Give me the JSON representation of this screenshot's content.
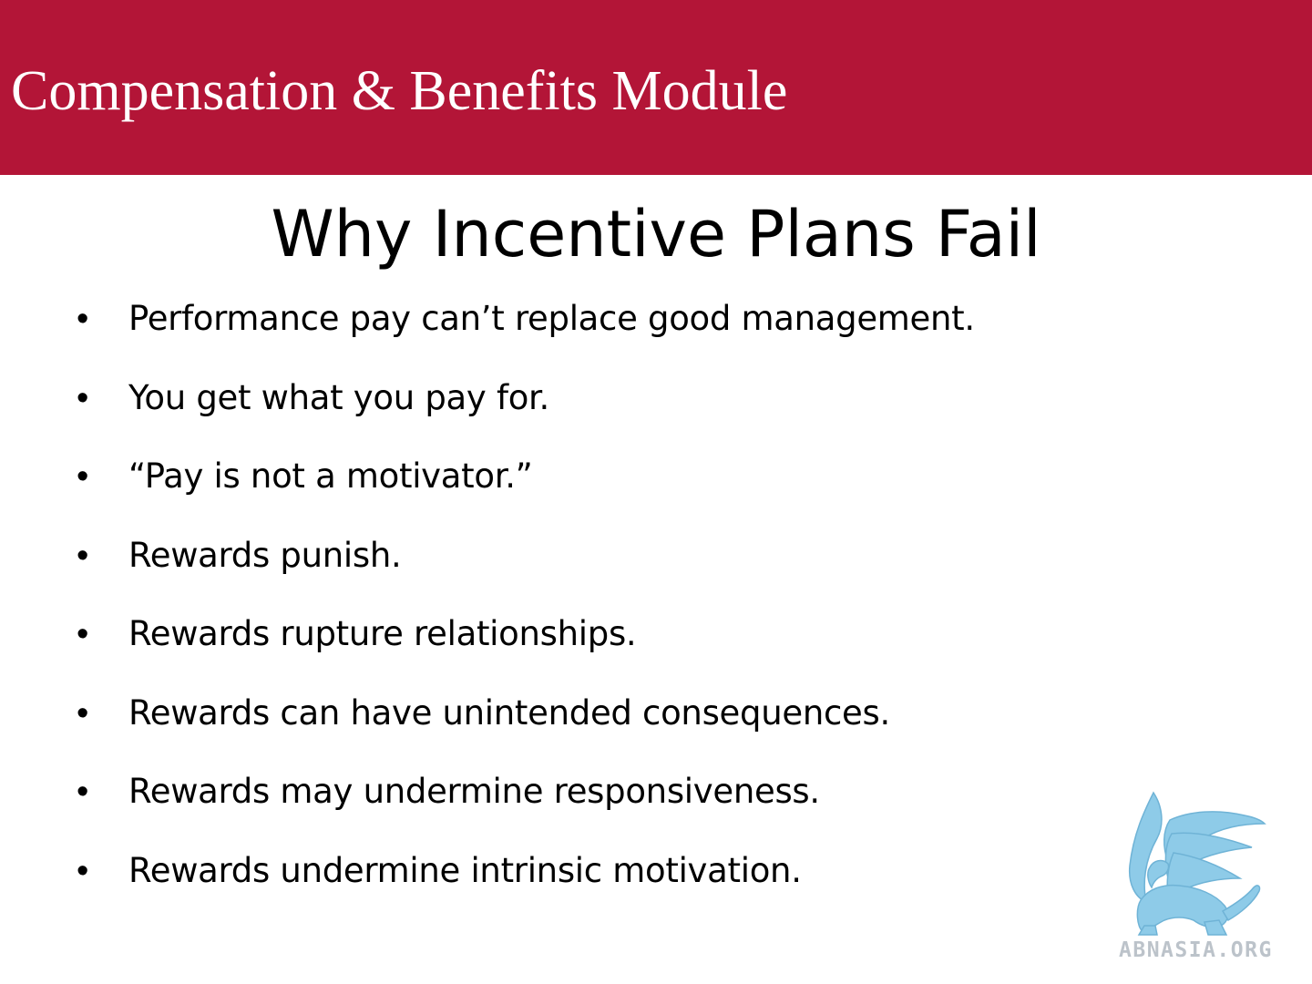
{
  "header": {
    "module_title": "Compensation & Benefits Module",
    "background_color": "#b31537"
  },
  "slide": {
    "title": "Why Incentive Plans Fail",
    "bullet_symbol": "•",
    "bullets": [
      "Performance pay can’t replace good management.",
      "You get what you pay for.",
      "“Pay is not a motivator.”",
      "Rewards punish.",
      "Rewards rupture relationships.",
      "Rewards can have unintended consequences.",
      "Rewards may undermine responsiveness.",
      "Rewards undermine intrinsic motivation."
    ]
  },
  "logo": {
    "text": "ABNASIA.ORG",
    "icon": "griffin-icon",
    "color": "#8ecbe8"
  }
}
